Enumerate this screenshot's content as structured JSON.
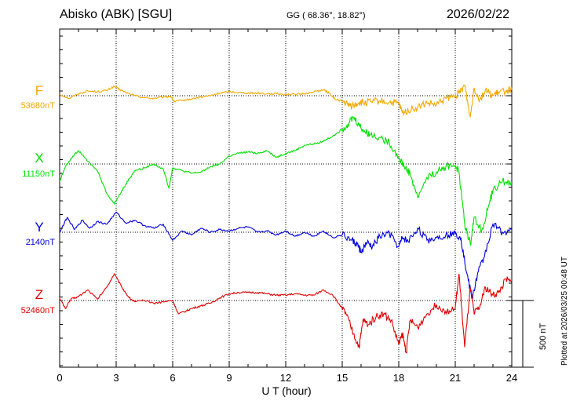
{
  "header": {
    "station": "Abisko (ABK)  [SGU]",
    "coords": "GG ( 68.36°,  18.82°)",
    "date": "2026/02/22"
  },
  "footer": {
    "plotted": "Plotted at 2026/03/25 00:48 UT"
  },
  "chart_data": {
    "type": "line",
    "xlabel": "U T (hour)",
    "xlim": [
      0,
      24
    ],
    "x_ticks": [
      "0",
      "3",
      "6",
      "9",
      "12",
      "15",
      "18",
      "21",
      "24"
    ],
    "scale_bar_label": "500 nT",
    "scale_bar_nT": 500,
    "grid": true,
    "series": [
      {
        "name": "F",
        "baseline_label": "53680nT",
        "baseline_nT": 53680,
        "color": "#f5a800",
        "x": [
          0,
          0.5,
          1,
          1.5,
          2,
          2.5,
          2.9,
          3.2,
          3.5,
          4,
          4.5,
          5,
          5.5,
          5.9,
          6.1,
          6.5,
          7,
          7.5,
          8,
          8.5,
          9,
          9.5,
          10,
          10.5,
          11,
          11.5,
          12,
          12.5,
          13,
          13.5,
          14,
          14.3,
          14.6,
          15,
          15.3,
          15.6,
          15.9,
          16.2,
          16.5,
          17,
          17.5,
          18,
          18.2,
          18.5,
          19,
          19.5,
          20,
          20.5,
          21,
          21.2,
          21.5,
          21.8,
          22,
          22.3,
          22.6,
          23,
          23.3,
          23.7,
          24
        ],
        "y": [
          10,
          -20,
          15,
          35,
          30,
          40,
          70,
          45,
          25,
          0,
          -15,
          -20,
          -10,
          -5,
          -45,
          -35,
          -25,
          -10,
          0,
          20,
          30,
          25,
          20,
          20,
          15,
          15,
          10,
          10,
          15,
          30,
          45,
          20,
          -25,
          -40,
          -70,
          -75,
          -50,
          -55,
          -45,
          -40,
          -50,
          -60,
          -130,
          -110,
          -90,
          -55,
          -70,
          -20,
          -5,
          20,
          80,
          -160,
          60,
          -30,
          40,
          0,
          25,
          40,
          45
        ]
      },
      {
        "name": "X",
        "baseline_label": "11150nT",
        "baseline_nT": 11150,
        "color": "#00e000",
        "x": [
          0,
          0.3,
          0.7,
          1,
          1.5,
          2,
          2.5,
          2.9,
          3.3,
          3.7,
          4,
          4.5,
          5,
          5.5,
          5.8,
          6,
          6.5,
          7,
          7.5,
          8,
          8.5,
          9,
          9.5,
          10,
          10.5,
          11,
          11.5,
          12,
          12.5,
          13,
          13.5,
          14,
          14.5,
          15,
          15.3,
          15.6,
          15.9,
          16.2,
          16.5,
          17,
          17.5,
          18,
          18.3,
          18.6,
          19,
          19.5,
          20,
          20.5,
          21,
          21.2,
          21.5,
          21.8,
          22,
          22.4,
          22.8,
          23,
          23.5,
          24
        ],
        "y": [
          -130,
          -20,
          60,
          100,
          20,
          -50,
          -220,
          -300,
          -200,
          -110,
          -50,
          -30,
          0,
          -40,
          -180,
          -30,
          -50,
          -70,
          -60,
          -20,
          0,
          60,
          80,
          90,
          80,
          100,
          50,
          80,
          100,
          140,
          150,
          170,
          210,
          260,
          300,
          350,
          290,
          240,
          220,
          200,
          160,
          50,
          -20,
          -70,
          -250,
          -100,
          -60,
          -20,
          -10,
          -60,
          -450,
          -600,
          -400,
          -500,
          -300,
          -200,
          -130,
          -150
        ]
      },
      {
        "name": "Y",
        "baseline_label": "2140nT",
        "baseline_nT": 2140,
        "color": "#0000e0",
        "x": [
          0,
          0.4,
          0.8,
          1.2,
          1.6,
          2,
          2.5,
          3,
          3.5,
          4,
          4.5,
          5,
          5.5,
          6,
          6.5,
          7,
          7.5,
          8,
          8.5,
          9,
          9.5,
          10,
          10.5,
          11,
          11.5,
          12,
          12.5,
          13,
          13.5,
          14,
          14.5,
          15,
          15.5,
          15.8,
          16,
          16.3,
          16.6,
          17,
          17.5,
          18,
          18.2,
          18.5,
          19,
          19.5,
          20,
          20.5,
          21,
          21.3,
          21.6,
          21.9,
          22.2,
          22.5,
          23,
          23.5,
          24
        ],
        "y": [
          0,
          110,
          20,
          90,
          30,
          80,
          60,
          150,
          70,
          90,
          50,
          30,
          60,
          -60,
          10,
          -20,
          30,
          0,
          20,
          10,
          30,
          40,
          0,
          10,
          -20,
          10,
          -30,
          0,
          -30,
          10,
          -40,
          -20,
          -60,
          -90,
          -150,
          -80,
          -110,
          -30,
          -10,
          -110,
          -40,
          -70,
          30,
          -60,
          -40,
          -20,
          -10,
          -40,
          -300,
          -500,
          -300,
          -200,
          60,
          0,
          20
        ]
      },
      {
        "name": "Z",
        "baseline_label": "52460nT",
        "baseline_nT": 52460,
        "color": "#e00000",
        "x": [
          0,
          0.3,
          0.6,
          1,
          1.5,
          2,
          2.5,
          2.9,
          3.3,
          3.7,
          4,
          4.5,
          5,
          5.5,
          6,
          6.3,
          6.7,
          7,
          7.5,
          8,
          8.5,
          9,
          9.5,
          10,
          10.5,
          11,
          11.5,
          12,
          12.5,
          13,
          13.5,
          14,
          14.5,
          15,
          15.2,
          15.6,
          15.9,
          16.1,
          16.4,
          16.8,
          17.2,
          17.6,
          18,
          18.2,
          18.4,
          18.6,
          19,
          19.5,
          20,
          20.5,
          21,
          21.2,
          21.5,
          21.8,
          22,
          22.3,
          22.6,
          23,
          23.3,
          23.7,
          24
        ],
        "y": [
          20,
          -60,
          10,
          30,
          80,
          10,
          100,
          200,
          100,
          20,
          -10,
          0,
          -20,
          -10,
          0,
          -100,
          -80,
          -60,
          -40,
          -20,
          20,
          50,
          60,
          60,
          60,
          50,
          40,
          40,
          50,
          40,
          40,
          80,
          40,
          -60,
          -100,
          -250,
          -350,
          -150,
          -180,
          -120,
          -100,
          -150,
          -330,
          -250,
          -390,
          -150,
          -200,
          -100,
          -30,
          -80,
          -60,
          200,
          -350,
          100,
          -100,
          -50,
          100,
          40,
          60,
          160,
          130
        ]
      }
    ]
  }
}
